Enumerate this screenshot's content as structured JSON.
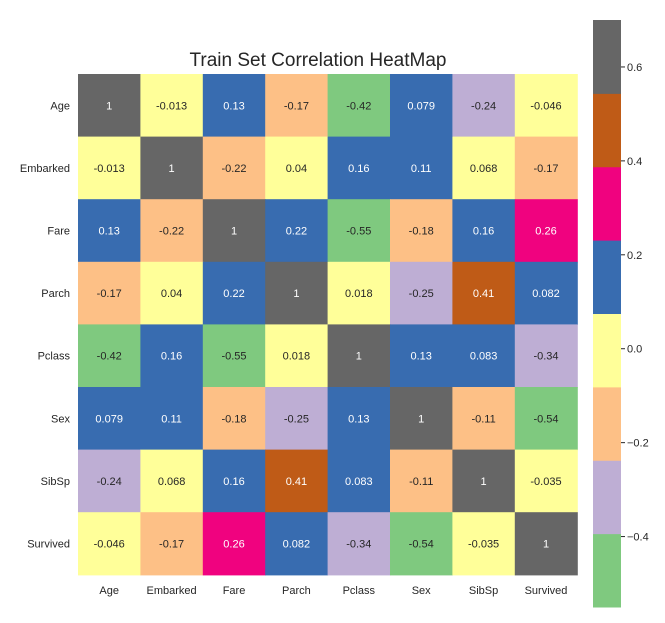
{
  "chart_data": {
    "type": "heatmap",
    "title": "Train Set Correlation HeatMap",
    "xlabel": "",
    "ylabel": "",
    "row_labels": [
      "Age",
      "Embarked",
      "Fare",
      "Parch",
      "Pclass",
      "Sex",
      "SibSp",
      "Survived"
    ],
    "col_labels": [
      "Age",
      "Embarked",
      "Fare",
      "Parch",
      "Pclass",
      "Sex",
      "SibSp",
      "Survived"
    ],
    "values": [
      [
        1,
        -0.013,
        0.13,
        -0.17,
        -0.42,
        0.079,
        -0.24,
        -0.046
      ],
      [
        -0.013,
        1,
        -0.22,
        0.04,
        0.16,
        0.11,
        0.068,
        -0.17
      ],
      [
        0.13,
        -0.22,
        1,
        0.22,
        -0.55,
        -0.18,
        0.16,
        0.26
      ],
      [
        -0.17,
        0.04,
        0.22,
        1,
        0.018,
        -0.25,
        0.41,
        0.082
      ],
      [
        -0.42,
        0.16,
        -0.55,
        0.018,
        1,
        0.13,
        0.083,
        -0.34
      ],
      [
        0.079,
        0.11,
        -0.18,
        -0.25,
        0.13,
        1,
        -0.11,
        -0.54
      ],
      [
        -0.24,
        0.068,
        0.16,
        0.41,
        0.083,
        -0.11,
        1,
        -0.035
      ],
      [
        -0.046,
        -0.17,
        0.26,
        0.082,
        -0.34,
        -0.54,
        -0.035,
        1
      ]
    ],
    "value_labels": [
      [
        "1",
        "-0.013",
        "0.13",
        "-0.17",
        "-0.42",
        "0.079",
        "-0.24",
        "-0.046"
      ],
      [
        "-0.013",
        "1",
        "-0.22",
        "0.04",
        "0.16",
        "0.11",
        "0.068",
        "-0.17"
      ],
      [
        "0.13",
        "-0.22",
        "1",
        "0.22",
        "-0.55",
        "-0.18",
        "0.16",
        "0.26"
      ],
      [
        "-0.17",
        "0.04",
        "0.22",
        "1",
        "0.018",
        "-0.25",
        "0.41",
        "0.082"
      ],
      [
        "-0.42",
        "0.16",
        "-0.55",
        "0.018",
        "1",
        "0.13",
        "0.083",
        "-0.34"
      ],
      [
        "0.079",
        "0.11",
        "-0.18",
        "-0.25",
        "0.13",
        "1",
        "-0.11",
        "-0.54"
      ],
      [
        "-0.24",
        "0.068",
        "0.16",
        "0.41",
        "0.083",
        "-0.11",
        "1",
        "-0.035"
      ],
      [
        "-0.046",
        "-0.17",
        "0.26",
        "0.082",
        "-0.34",
        "-0.54",
        "-0.035",
        "1"
      ]
    ],
    "colormap": "Accent",
    "vmin": -0.55,
    "vmax": 0.7,
    "colorbar": {
      "ticks": [
        0.6,
        0.4,
        0.2,
        0.0,
        -0.2,
        -0.4
      ],
      "tick_labels": [
        "0.6",
        "0.4",
        "0.2",
        "0.0",
        "−0.2",
        "−0.4"
      ],
      "colors": [
        "#7fc97f",
        "#beaed4",
        "#fdc086",
        "#ffff99",
        "#386cb0",
        "#f0027f",
        "#bf5b17",
        "#666666"
      ]
    }
  }
}
